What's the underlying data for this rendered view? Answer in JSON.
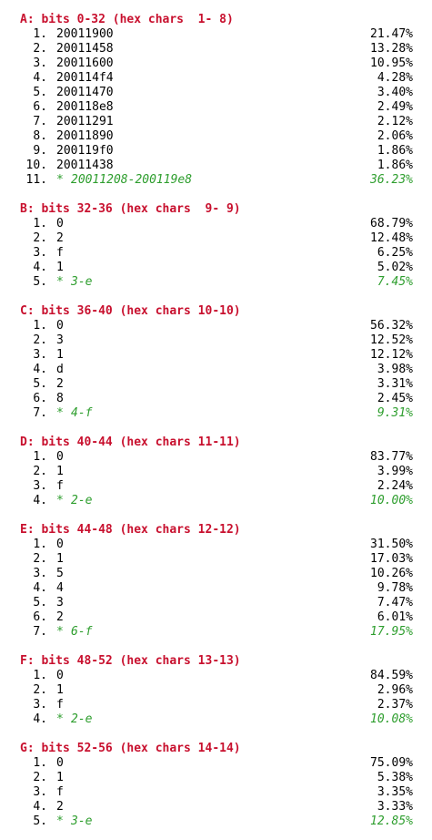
{
  "sections": [
    {
      "header": "A: bits 0-32 (hex chars  1- 8)",
      "rows": [
        {
          "idx": "1.",
          "value": "20011900",
          "pct": "21.47%"
        },
        {
          "idx": "2.",
          "value": "20011458",
          "pct": "13.28%"
        },
        {
          "idx": "3.",
          "value": "20011600",
          "pct": "10.95%"
        },
        {
          "idx": "4.",
          "value": "200114f4",
          "pct": "4.28%"
        },
        {
          "idx": "5.",
          "value": "20011470",
          "pct": "3.40%"
        },
        {
          "idx": "6.",
          "value": "200118e8",
          "pct": "2.49%"
        },
        {
          "idx": "7.",
          "value": "20011291",
          "pct": "2.12%"
        },
        {
          "idx": "8.",
          "value": "20011890",
          "pct": "2.06%"
        },
        {
          "idx": "9.",
          "value": "200119f0",
          "pct": "1.86%"
        },
        {
          "idx": "10.",
          "value": "20011438",
          "pct": "1.86%"
        }
      ],
      "summary": {
        "idx": "11.",
        "star": "*",
        "value": "20011208-200119e8",
        "pct": "36.23%"
      }
    },
    {
      "header": "B: bits 32-36 (hex chars  9- 9)",
      "rows": [
        {
          "idx": "1.",
          "value": "0",
          "pct": "68.79%"
        },
        {
          "idx": "2.",
          "value": "2",
          "pct": "12.48%"
        },
        {
          "idx": "3.",
          "value": "f",
          "pct": "6.25%"
        },
        {
          "idx": "4.",
          "value": "1",
          "pct": "5.02%"
        }
      ],
      "summary": {
        "idx": "5.",
        "star": "*",
        "value": "3-e",
        "pct": "7.45%"
      }
    },
    {
      "header": "C: bits 36-40 (hex chars 10-10)",
      "rows": [
        {
          "idx": "1.",
          "value": "0",
          "pct": "56.32%"
        },
        {
          "idx": "2.",
          "value": "3",
          "pct": "12.52%"
        },
        {
          "idx": "3.",
          "value": "1",
          "pct": "12.12%"
        },
        {
          "idx": "4.",
          "value": "d",
          "pct": "3.98%"
        },
        {
          "idx": "5.",
          "value": "2",
          "pct": "3.31%"
        },
        {
          "idx": "6.",
          "value": "8",
          "pct": "2.45%"
        }
      ],
      "summary": {
        "idx": "7.",
        "star": "*",
        "value": "4-f",
        "pct": "9.31%"
      }
    },
    {
      "header": "D: bits 40-44 (hex chars 11-11)",
      "rows": [
        {
          "idx": "1.",
          "value": "0",
          "pct": "83.77%"
        },
        {
          "idx": "2.",
          "value": "1",
          "pct": "3.99%"
        },
        {
          "idx": "3.",
          "value": "f",
          "pct": "2.24%"
        }
      ],
      "summary": {
        "idx": "4.",
        "star": "*",
        "value": "2-e",
        "pct": "10.00%"
      }
    },
    {
      "header": "E: bits 44-48 (hex chars 12-12)",
      "rows": [
        {
          "idx": "1.",
          "value": "0",
          "pct": "31.50%"
        },
        {
          "idx": "2.",
          "value": "1",
          "pct": "17.03%"
        },
        {
          "idx": "3.",
          "value": "5",
          "pct": "10.26%"
        },
        {
          "idx": "4.",
          "value": "4",
          "pct": "9.78%"
        },
        {
          "idx": "5.",
          "value": "3",
          "pct": "7.47%"
        },
        {
          "idx": "6.",
          "value": "2",
          "pct": "6.01%"
        }
      ],
      "summary": {
        "idx": "7.",
        "star": "*",
        "value": "6-f",
        "pct": "17.95%"
      }
    },
    {
      "header": "F: bits 48-52 (hex chars 13-13)",
      "rows": [
        {
          "idx": "1.",
          "value": "0",
          "pct": "84.59%"
        },
        {
          "idx": "2.",
          "value": "1",
          "pct": "2.96%"
        },
        {
          "idx": "3.",
          "value": "f",
          "pct": "2.37%"
        }
      ],
      "summary": {
        "idx": "4.",
        "star": "*",
        "value": "2-e",
        "pct": "10.08%"
      }
    },
    {
      "header": "G: bits 52-56 (hex chars 14-14)",
      "rows": [
        {
          "idx": "1.",
          "value": "0",
          "pct": "75.09%"
        },
        {
          "idx": "2.",
          "value": "1",
          "pct": "5.38%"
        },
        {
          "idx": "3.",
          "value": "f",
          "pct": "3.35%"
        },
        {
          "idx": "4.",
          "value": "2",
          "pct": "3.33%"
        }
      ],
      "summary": {
        "idx": "5.",
        "star": "*",
        "value": "3-e",
        "pct": "12.85%"
      }
    }
  ],
  "colors": {
    "header": "#c8102e",
    "summary": "#2e9e2e",
    "text": "#000000"
  }
}
